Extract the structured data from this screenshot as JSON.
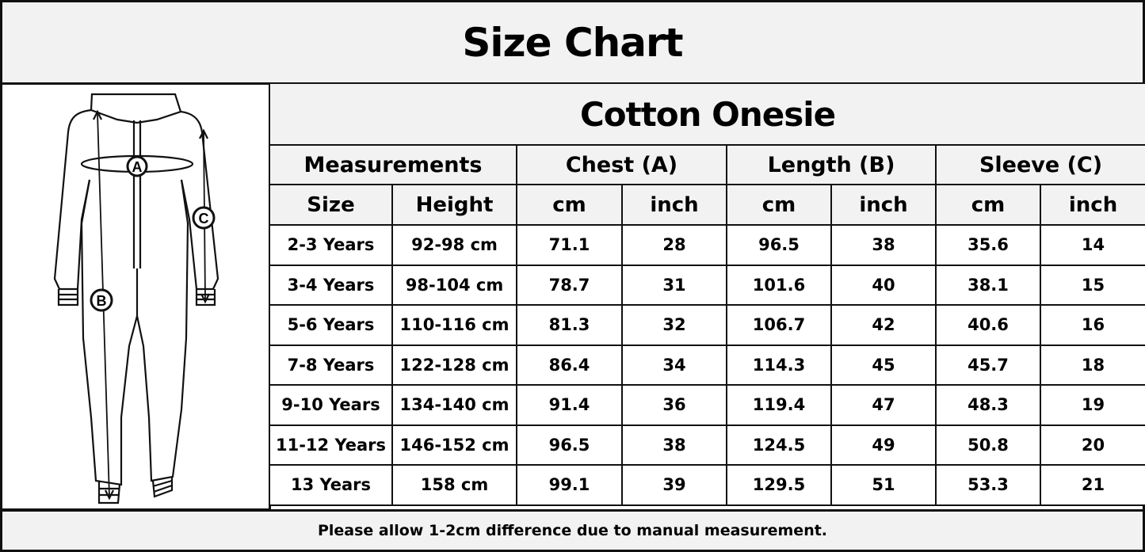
{
  "title": "Size Chart",
  "product": "Cotton Onesie",
  "groups": [
    "Measurements",
    "Chest (A)",
    "Length (B)",
    "Sleeve (C)"
  ],
  "subheaders": [
    "Size",
    "Height",
    "cm",
    "inch",
    "cm",
    "inch",
    "cm",
    "inch"
  ],
  "rows": [
    [
      "2-3 Years",
      "92-98 cm",
      "71.1",
      "28",
      "96.5",
      "38",
      "35.6",
      "14"
    ],
    [
      "3-4 Years",
      "98-104 cm",
      "78.7",
      "31",
      "101.6",
      "40",
      "38.1",
      "15"
    ],
    [
      "5-6 Years",
      "110-116 cm",
      "81.3",
      "32",
      "106.7",
      "42",
      "40.6",
      "16"
    ],
    [
      "7-8 Years",
      "122-128 cm",
      "86.4",
      "34",
      "114.3",
      "45",
      "45.7",
      "18"
    ],
    [
      "9-10 Years",
      "134-140 cm",
      "91.4",
      "36",
      "119.4",
      "47",
      "48.3",
      "19"
    ],
    [
      "11-12 Years",
      "146-152 cm",
      "96.5",
      "38",
      "124.5",
      "49",
      "50.8",
      "20"
    ],
    [
      "13 Years",
      "158 cm",
      "99.1",
      "39",
      "129.5",
      "51",
      "53.3",
      "21"
    ]
  ],
  "illustration": {
    "labels": [
      "A",
      "B",
      "C"
    ]
  },
  "footer": "Please allow 1-2cm difference due to manual measurement.",
  "colors": {
    "header_bg": "#f2f2f2",
    "border": "#111111"
  }
}
